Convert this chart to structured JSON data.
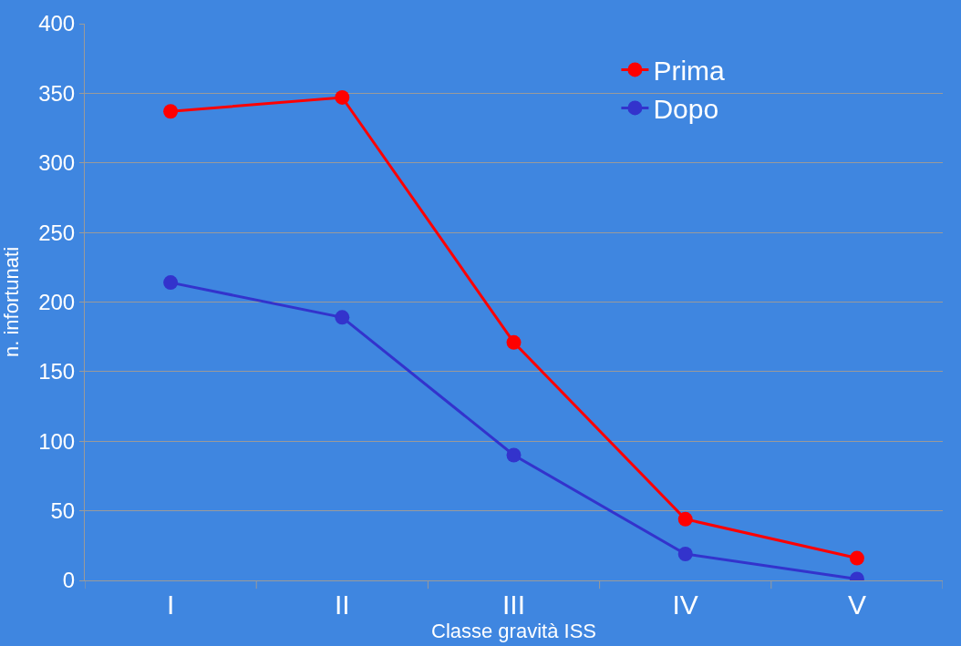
{
  "chart_data": {
    "type": "line",
    "xlabel": "Classe gravità ISS",
    "ylabel": "n. infortunati",
    "categories": [
      "I",
      "II",
      "III",
      "IV",
      "V"
    ],
    "series": [
      {
        "name": "Prima",
        "color": "#ff0000",
        "values": [
          337,
          347,
          171,
          44,
          16
        ]
      },
      {
        "name": "Dopo",
        "color": "#3333cc",
        "values": [
          214,
          189,
          90,
          19,
          1
        ]
      }
    ],
    "ylim": [
      0,
      400
    ],
    "yticks": [
      0,
      50,
      100,
      150,
      200,
      250,
      300,
      350,
      400
    ],
    "grid": "y",
    "legend": "top right",
    "marker": "circle",
    "line_style": "solid"
  }
}
